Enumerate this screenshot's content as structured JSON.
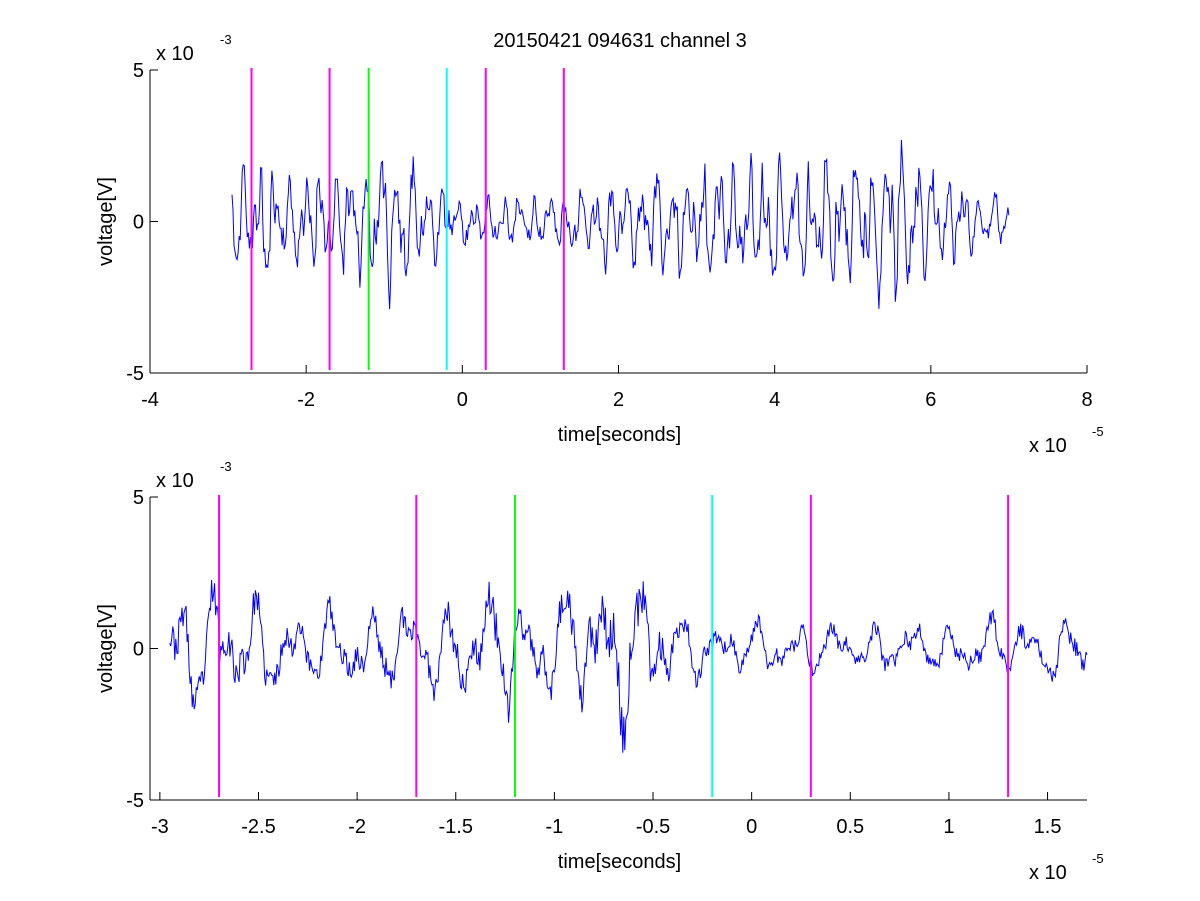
{
  "title": "20150421 094631 channel 3",
  "chart_data": [
    {
      "type": "line",
      "title": "20150421 094631 channel 3",
      "xlabel": "time[seconds]",
      "ylabel": "voltage[V]",
      "x_exponent_label": "x 10",
      "x_exponent": "-5",
      "y_exponent_label": "x 10",
      "y_exponent": "-3",
      "xlim": [
        -4,
        8
      ],
      "ylim": [
        -5,
        5
      ],
      "x_ticks": [
        -4,
        -2,
        0,
        2,
        4,
        6,
        8
      ],
      "x_tick_labels": [
        "-4",
        "-2",
        "0",
        "2",
        "4",
        "6",
        "8"
      ],
      "y_ticks": [
        -5,
        0,
        5
      ],
      "y_tick_labels": [
        "-5",
        "0",
        "5"
      ],
      "grid": false,
      "signal": {
        "color": "#0000ff",
        "x_range": [
          -2.95,
          7.0
        ],
        "points": 760,
        "seed": 11,
        "amplitude_profile": [
          [
            -2.95,
            1.9
          ],
          [
            -2.7,
            2.2
          ],
          [
            -2.2,
            1.6
          ],
          [
            -1.2,
            2.0
          ],
          [
            -0.8,
            2.6
          ],
          [
            -0.4,
            1.3
          ],
          [
            0.0,
            0.9
          ],
          [
            1.0,
            0.8
          ],
          [
            1.5,
            1.2
          ],
          [
            3.0,
            1.9
          ],
          [
            4.3,
            2.0
          ],
          [
            5.0,
            2.4
          ],
          [
            5.6,
            3.2
          ],
          [
            6.1,
            2.0
          ],
          [
            6.5,
            1.0
          ],
          [
            7.0,
            0.8
          ]
        ]
      },
      "markers": [
        {
          "x": -2.7,
          "color": "#ff00ff"
        },
        {
          "x": -1.7,
          "color": "#ff00ff"
        },
        {
          "x": -1.2,
          "color": "#00ff00"
        },
        {
          "x": -0.2,
          "color": "#00ffff"
        },
        {
          "x": 0.3,
          "color": "#ff00ff"
        },
        {
          "x": 1.3,
          "color": "#ff00ff"
        }
      ]
    },
    {
      "type": "line",
      "title": "",
      "xlabel": "time[seconds]",
      "ylabel": "voltage[V]",
      "x_exponent_label": "x 10",
      "x_exponent": "-5",
      "y_exponent_label": "x 10",
      "y_exponent": "-3",
      "xlim": [
        -3.05,
        1.7
      ],
      "ylim": [
        -5,
        5
      ],
      "x_ticks": [
        -3,
        -2.5,
        -2,
        -1.5,
        -1,
        -0.5,
        0,
        0.5,
        1,
        1.5
      ],
      "x_tick_labels": [
        "-3",
        "-2.5",
        "-2",
        "-1.5",
        "-1",
        "-0.5",
        "0",
        "0.5",
        "1",
        "1.5"
      ],
      "y_ticks": [
        -5,
        0,
        5
      ],
      "y_tick_labels": [
        "-5",
        "0",
        "5"
      ],
      "grid": false,
      "signal": {
        "color": "#0000ff",
        "x_range": [
          -2.95,
          1.7
        ],
        "points": 900,
        "seed": 23,
        "amplitude_profile": [
          [
            -2.95,
            1.8
          ],
          [
            -2.7,
            2.3
          ],
          [
            -2.4,
            1.4
          ],
          [
            -2.0,
            1.3
          ],
          [
            -1.6,
            1.6
          ],
          [
            -1.3,
            2.2
          ],
          [
            -1.0,
            1.8
          ],
          [
            -0.7,
            2.8
          ],
          [
            -0.5,
            2.2
          ],
          [
            -0.3,
            1.0
          ],
          [
            0.0,
            0.9
          ],
          [
            0.5,
            0.8
          ],
          [
            1.0,
            0.9
          ],
          [
            1.3,
            1.1
          ],
          [
            1.7,
            1.0
          ]
        ]
      },
      "markers": [
        {
          "x": -2.7,
          "color": "#ff00ff"
        },
        {
          "x": -1.7,
          "color": "#ff00ff"
        },
        {
          "x": -1.2,
          "color": "#00ff00"
        },
        {
          "x": -0.2,
          "color": "#00ffff"
        },
        {
          "x": 0.3,
          "color": "#ff00ff"
        },
        {
          "x": 1.3,
          "color": "#ff00ff"
        }
      ]
    }
  ]
}
